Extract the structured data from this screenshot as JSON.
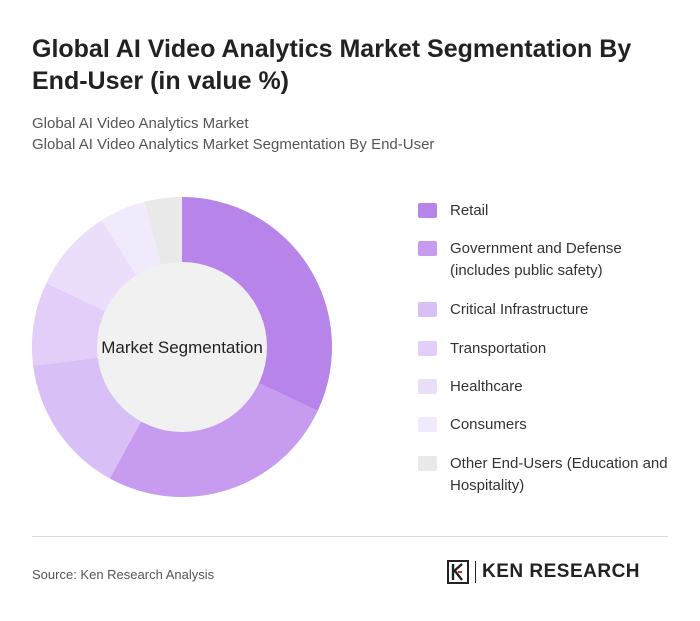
{
  "title": "Global AI Video Analytics Market Segmentation By End-User (in value %)",
  "subtitle_line1": "Global AI Video Analytics Market",
  "subtitle_line2": "Global AI Video Analytics Market Segmentation By End-User",
  "chart_data": {
    "type": "pie",
    "center_label": "Market Segmentation",
    "categories": [
      "Retail",
      "Government and Defense (includes public safety)",
      "Critical Infrastructure",
      "Transportation",
      "Healthcare",
      "Consumers",
      "Other End-Users (Education and Hospitality)"
    ],
    "values": [
      32,
      26,
      15,
      9,
      9,
      5,
      4
    ],
    "colors": [
      "#b784ea",
      "#c79bf0",
      "#d8bff6",
      "#e2cef8",
      "#ebdefa",
      "#f1eafc",
      "#e9e9e9"
    ],
    "legend_position": "right"
  },
  "source": "Source: Ken Research Analysis",
  "logo": {
    "name": "KEN RESEARCH",
    "icon": "ken-research-logo-icon"
  }
}
